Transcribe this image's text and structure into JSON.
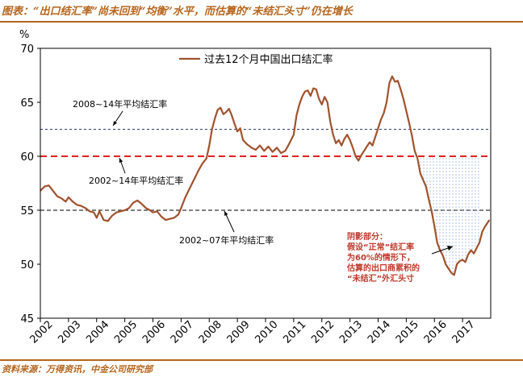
{
  "header": {
    "title": "图表：“出口结汇率”尚未回到“均衡”水平，而估算的“未结汇头寸”仍在增长"
  },
  "footer": {
    "source": "资料来源：万得资讯，中金公司研究部"
  },
  "colors": {
    "line": "#a0522d",
    "ref_2008_14": "#2e3b6e",
    "ref_2002_14": "#e02020",
    "ref_2002_07": "#333333",
    "shade": "#5b8fd0",
    "shade_note": "#c0392b"
  },
  "chart_data": {
    "type": "line",
    "ylabel": "%",
    "ylim": [
      45,
      70
    ],
    "yticks": [
      45,
      50,
      55,
      60,
      65,
      70
    ],
    "xlim": [
      2002.0,
      2018.0
    ],
    "xticks": [
      "2002",
      "2003",
      "2004",
      "2005",
      "2006",
      "2007",
      "2008",
      "2009",
      "2010",
      "2011",
      "2012",
      "2013",
      "2014",
      "2015",
      "2016",
      "2017"
    ],
    "series": [
      {
        "name": "过去12个月中国出口结汇率",
        "x": [
          2002.0,
          2002.15,
          2002.3,
          2002.45,
          2002.6,
          2002.75,
          2002.9,
          2003.0,
          2003.15,
          2003.3,
          2003.45,
          2003.6,
          2003.75,
          2003.9,
          2004.0,
          2004.1,
          2004.25,
          2004.4,
          2004.55,
          2004.7,
          2004.85,
          2005.0,
          2005.15,
          2005.3,
          2005.45,
          2005.6,
          2005.75,
          2005.9,
          2006.0,
          2006.15,
          2006.3,
          2006.45,
          2006.6,
          2006.75,
          2006.9,
          2007.0,
          2007.15,
          2007.3,
          2007.45,
          2007.6,
          2007.75,
          2007.9,
          2008.0,
          2008.1,
          2008.2,
          2008.3,
          2008.4,
          2008.5,
          2008.6,
          2008.7,
          2008.8,
          2008.9,
          2009.0,
          2009.1,
          2009.2,
          2009.35,
          2009.5,
          2009.65,
          2009.8,
          2009.95,
          2010.1,
          2010.25,
          2010.4,
          2010.55,
          2010.7,
          2010.85,
          2011.0,
          2011.1,
          2011.2,
          2011.3,
          2011.4,
          2011.5,
          2011.6,
          2011.7,
          2011.8,
          2011.9,
          2012.0,
          2012.1,
          2012.2,
          2012.3,
          2012.4,
          2012.5,
          2012.6,
          2012.7,
          2012.8,
          2012.9,
          2013.0,
          2013.1,
          2013.2,
          2013.3,
          2013.4,
          2013.5,
          2013.6,
          2013.7,
          2013.8,
          2013.9,
          2014.0,
          2014.1,
          2014.2,
          2014.3,
          2014.4,
          2014.5,
          2014.6,
          2014.7,
          2014.8,
          2014.9,
          2015.0,
          2015.1,
          2015.2,
          2015.3,
          2015.4,
          2015.5,
          2015.6,
          2015.7,
          2015.8,
          2015.9,
          2016.0,
          2016.1,
          2016.2,
          2016.3,
          2016.4,
          2016.5,
          2016.6,
          2016.7,
          2016.8,
          2016.9,
          2017.0,
          2017.1,
          2017.2,
          2017.3,
          2017.4,
          2017.5,
          2017.6,
          2017.7,
          2017.8,
          2017.95
        ],
        "values": [
          56.8,
          57.2,
          57.3,
          56.8,
          56.3,
          56.1,
          55.8,
          56.2,
          55.8,
          55.5,
          55.4,
          55.2,
          54.9,
          54.8,
          54.3,
          54.9,
          54.1,
          54.0,
          54.5,
          54.8,
          54.9,
          55.0,
          55.2,
          55.7,
          55.9,
          55.6,
          55.2,
          55.0,
          54.8,
          54.9,
          54.4,
          54.1,
          54.2,
          54.3,
          54.6,
          55.2,
          56.2,
          57.0,
          57.8,
          58.6,
          59.3,
          59.8,
          61.0,
          62.5,
          63.5,
          64.3,
          64.5,
          63.9,
          64.1,
          64.4,
          63.8,
          63.0,
          62.3,
          62.6,
          61.5,
          61.1,
          60.8,
          60.6,
          61.0,
          60.5,
          60.9,
          60.4,
          60.8,
          60.3,
          60.5,
          61.2,
          62.0,
          63.8,
          64.8,
          65.5,
          66.0,
          66.1,
          65.6,
          66.3,
          66.2,
          65.3,
          64.8,
          65.5,
          65.0,
          63.2,
          62.0,
          61.2,
          61.5,
          61.0,
          61.6,
          62.0,
          61.5,
          60.8,
          60.0,
          59.6,
          60.1,
          60.5,
          60.9,
          61.3,
          61.0,
          61.8,
          62.6,
          63.4,
          64.0,
          65.0,
          66.8,
          67.4,
          66.9,
          67.0,
          66.2,
          65.3,
          64.2,
          63.1,
          61.9,
          60.5,
          59.8,
          58.4,
          57.8,
          57.2,
          56.0,
          54.9,
          53.5,
          52.0,
          51.3,
          50.8,
          50.0,
          49.6,
          49.2,
          49.0,
          50.0,
          50.3,
          50.4,
          50.2,
          50.9,
          51.3,
          51.0,
          51.5,
          52.0,
          53.0,
          53.5,
          54.1
        ]
      }
    ],
    "reference_lines": [
      {
        "label": "2008~14年平均结汇率",
        "value": 62.5,
        "style": "dashed"
      },
      {
        "label": "2002~14年平均结汇率",
        "value": 60.0,
        "style": "dashed"
      },
      {
        "label": "2002~07年平均结汇率",
        "value": 55.0,
        "style": "dashed"
      }
    ],
    "shaded_region": {
      "x_start": 2015.4,
      "x_end": 2017.6,
      "upper": 60.0,
      "annotation": [
        "阴影部分：",
        "假设“正常”结汇率",
        "为60%的情形下，",
        "估算的出口商累积的",
        "“未结汇”外汇头寸"
      ]
    },
    "legend": "top"
  }
}
